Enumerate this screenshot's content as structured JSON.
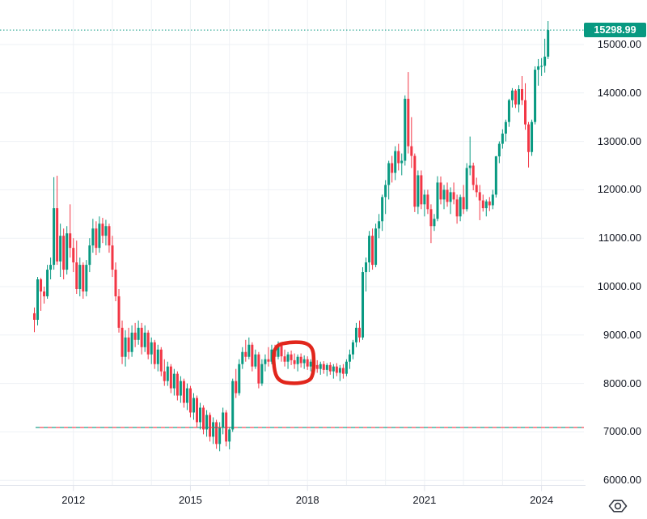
{
  "price_scale": {
    "current_price_label": "15298.99",
    "labels": [
      "15000.00",
      "14000.00",
      "13000.00",
      "12000.00",
      "11000.00",
      "10000.00",
      "9000.00",
      "8000.00",
      "7000.00",
      "6000.00"
    ],
    "levels": [
      15000,
      14000,
      13000,
      12000,
      11000,
      10000,
      9000,
      8000,
      7000,
      6000
    ],
    "label_bg_color": "#089981",
    "text_color": "#131722"
  },
  "time_scale": {
    "labeled_years": [
      2012,
      2015,
      2018,
      2021,
      2024
    ],
    "gridline_years": [
      2012,
      2013,
      2014,
      2015,
      2016,
      2017,
      2018,
      2019,
      2020,
      2021,
      2022,
      2023,
      2024
    ],
    "text_color": "#131722"
  },
  "colors": {
    "background": "#ffffff",
    "grid": "#eef1f5",
    "separator": "#e0e3eb",
    "up": "#089981",
    "down": "#f23645",
    "current_price_line": "#089981",
    "annotation_red": "#e1261c",
    "icon_stroke": "#363a45"
  },
  "chart_data": {
    "type": "candlestick",
    "interval": "1M",
    "start": "2011-01",
    "end": "2024-03",
    "ylim": [
      5950,
      15600
    ],
    "grid": true,
    "current_price": 15298.99,
    "dashed_levels": [
      {
        "price": 7100,
        "color": "#089981",
        "style": "dashed",
        "note": "teal dashed horizontal line"
      },
      {
        "price": 7100,
        "color": "#f23645",
        "style": "dashed",
        "note": "red dashed horizontal line overlapping teal"
      }
    ],
    "annotations": [
      {
        "type": "hand-drawn-circle",
        "color": "#e1261c",
        "x_range": [
          "2017-04",
          "2018-02"
        ],
        "price_range": [
          8010,
          8850
        ]
      }
    ],
    "candles": [
      [
        9450,
        9570,
        9060,
        9315
      ],
      [
        9315,
        10200,
        9200,
        10150
      ],
      [
        10150,
        10180,
        9500,
        9900
      ],
      [
        9900,
        10000,
        9650,
        9800
      ],
      [
        9800,
        10450,
        9750,
        10350
      ],
      [
        10350,
        10600,
        10150,
        10450
      ],
      [
        10450,
        12260,
        10350,
        11620
      ],
      [
        11620,
        12290,
        10450,
        10520
      ],
      [
        10520,
        11300,
        10200,
        11050
      ],
      [
        11050,
        11200,
        10150,
        10350
      ],
      [
        10350,
        11250,
        10250,
        11100
      ],
      [
        11100,
        11700,
        10600,
        10800
      ],
      [
        10800,
        11000,
        10300,
        10500
      ],
      [
        10500,
        10950,
        9850,
        9950
      ],
      [
        9950,
        10600,
        9800,
        10450
      ],
      [
        10450,
        10500,
        9750,
        9900
      ],
      [
        9900,
        10550,
        9800,
        10450
      ],
      [
        10450,
        11000,
        10300,
        10850
      ],
      [
        10850,
        11400,
        10700,
        11200
      ],
      [
        11200,
        11350,
        10650,
        10800
      ],
      [
        10800,
        11450,
        10700,
        11300
      ],
      [
        11300,
        11420,
        10900,
        11050
      ],
      [
        11050,
        11380,
        10850,
        11250
      ],
      [
        11250,
        11300,
        10700,
        10850
      ],
      [
        10850,
        11050,
        10200,
        10350
      ],
      [
        10350,
        10500,
        9700,
        9800
      ],
      [
        9800,
        9950,
        9050,
        9150
      ],
      [
        9150,
        9300,
        8400,
        8550
      ],
      [
        8550,
        9100,
        8350,
        8950
      ],
      [
        8950,
        9150,
        8500,
        8650
      ],
      [
        8650,
        9200,
        8550,
        9050
      ],
      [
        9050,
        9250,
        8750,
        8900
      ],
      [
        8900,
        9300,
        8800,
        9150
      ],
      [
        9150,
        9250,
        8600,
        8750
      ],
      [
        8750,
        9200,
        8650,
        9050
      ],
      [
        9050,
        9100,
        8500,
        8600
      ],
      [
        8600,
        8950,
        8400,
        8850
      ],
      [
        8850,
        8900,
        8300,
        8400
      ],
      [
        8400,
        8800,
        8250,
        8700
      ],
      [
        8700,
        8750,
        8150,
        8250
      ],
      [
        8250,
        8500,
        7950,
        8050
      ],
      [
        8050,
        8450,
        7950,
        8350
      ],
      [
        8350,
        8400,
        7800,
        7900
      ],
      [
        7900,
        8300,
        7750,
        8200
      ],
      [
        8200,
        8250,
        7650,
        7750
      ],
      [
        7750,
        8150,
        7600,
        8050
      ],
      [
        8050,
        8100,
        7500,
        7600
      ],
      [
        7600,
        8000,
        7450,
        7900
      ],
      [
        7900,
        7950,
        7300,
        7400
      ],
      [
        7400,
        7800,
        7250,
        7700
      ],
      [
        7700,
        7750,
        7100,
        7200
      ],
      [
        7200,
        7600,
        7050,
        7500
      ],
      [
        7500,
        7550,
        6950,
        7050
      ],
      [
        7050,
        7450,
        6900,
        7350
      ],
      [
        7350,
        7400,
        6800,
        6900
      ],
      [
        6900,
        7300,
        6750,
        7200
      ],
      [
        7200,
        7250,
        6650,
        6750
      ],
      [
        6750,
        7200,
        6600,
        7100
      ],
      [
        7100,
        7500,
        6950,
        7400
      ],
      [
        7400,
        7450,
        6700,
        6800
      ],
      [
        6800,
        7100,
        6640,
        7050
      ],
      [
        7050,
        8100,
        7000,
        8050
      ],
      [
        8050,
        8300,
        7700,
        7800
      ],
      [
        7800,
        8500,
        7750,
        8400
      ],
      [
        8400,
        8750,
        8300,
        8650
      ],
      [
        8650,
        8900,
        8450,
        8550
      ],
      [
        8550,
        8950,
        8500,
        8800
      ],
      [
        8800,
        8850,
        8250,
        8350
      ],
      [
        8350,
        8700,
        8300,
        8600
      ],
      [
        8600,
        8650,
        7900,
        8000
      ],
      [
        8000,
        8500,
        7950,
        8400
      ],
      [
        8400,
        8600,
        8250,
        8500
      ],
      [
        8500,
        8750,
        8350,
        8450
      ],
      [
        8450,
        8800,
        8400,
        8700
      ],
      [
        8700,
        8800,
        8450,
        8550
      ],
      [
        8550,
        8870,
        8500,
        8780
      ],
      [
        8780,
        8820,
        8450,
        8560
      ],
      [
        8560,
        8700,
        8350,
        8450
      ],
      [
        8450,
        8650,
        8300,
        8600
      ],
      [
        8600,
        8680,
        8380,
        8480
      ],
      [
        8480,
        8620,
        8300,
        8400
      ],
      [
        8400,
        8600,
        8250,
        8550
      ],
      [
        8550,
        8620,
        8330,
        8420
      ],
      [
        8420,
        8580,
        8300,
        8500
      ],
      [
        8500,
        8560,
        8280,
        8350
      ],
      [
        8350,
        8500,
        8250,
        8450
      ],
      [
        8450,
        8520,
        8300,
        8380
      ],
      [
        8380,
        8480,
        8220,
        8300
      ],
      [
        8300,
        8450,
        8180,
        8400
      ],
      [
        8400,
        8460,
        8200,
        8280
      ],
      [
        8280,
        8420,
        8150,
        8380
      ],
      [
        8380,
        8440,
        8180,
        8250
      ],
      [
        8250,
        8400,
        8100,
        8350
      ],
      [
        8350,
        8420,
        8150,
        8220
      ],
      [
        8220,
        8380,
        8050,
        8320
      ],
      [
        8320,
        8400,
        8100,
        8200
      ],
      [
        8200,
        8500,
        8150,
        8450
      ],
      [
        8450,
        8700,
        8300,
        8600
      ],
      [
        8600,
        8900,
        8500,
        8850
      ],
      [
        8850,
        9250,
        8750,
        9150
      ],
      [
        9150,
        9300,
        8850,
        8950
      ],
      [
        8950,
        10400,
        8900,
        10300
      ],
      [
        10300,
        10600,
        9900,
        10500
      ],
      [
        10500,
        11150,
        10300,
        11050
      ],
      [
        11050,
        11200,
        10350,
        10450
      ],
      [
        10450,
        11300,
        10400,
        11200
      ],
      [
        11200,
        11500,
        11000,
        11350
      ],
      [
        11350,
        11900,
        11150,
        11850
      ],
      [
        11850,
        12200,
        11500,
        12100
      ],
      [
        12100,
        12600,
        11800,
        12550
      ],
      [
        12550,
        12700,
        12150,
        12350
      ],
      [
        12350,
        12900,
        12200,
        12800
      ],
      [
        12800,
        12950,
        12400,
        12550
      ],
      [
        12550,
        12750,
        12300,
        12600
      ],
      [
        12600,
        13950,
        12500,
        13880
      ],
      [
        13880,
        14430,
        12750,
        12900
      ],
      [
        12900,
        13500,
        12450,
        12700
      ],
      [
        12700,
        12750,
        11540,
        11650
      ],
      [
        11650,
        12400,
        11500,
        12300
      ],
      [
        12300,
        12400,
        11600,
        11700
      ],
      [
        11700,
        12000,
        11450,
        11900
      ],
      [
        11900,
        12000,
        11500,
        11600
      ],
      [
        11600,
        11700,
        10900,
        11250
      ],
      [
        11250,
        11500,
        11150,
        11400
      ],
      [
        11400,
        12280,
        11350,
        12150
      ],
      [
        12150,
        12274,
        11700,
        11800
      ],
      [
        11800,
        12100,
        11600,
        12000
      ],
      [
        12000,
        12150,
        11650,
        11750
      ],
      [
        11750,
        12050,
        11500,
        11950
      ],
      [
        11950,
        12150,
        11700,
        11800
      ],
      [
        11800,
        11900,
        11300,
        11450
      ],
      [
        11450,
        11900,
        11350,
        11850
      ],
      [
        11850,
        12100,
        11500,
        11600
      ],
      [
        11600,
        12550,
        11550,
        12450
      ],
      [
        12450,
        13100,
        12300,
        12500
      ],
      [
        12500,
        12560,
        11990,
        12100
      ],
      [
        12100,
        12250,
        11850,
        11950
      ],
      [
        11950,
        12100,
        11372,
        11780
      ],
      [
        11780,
        11900,
        11550,
        11620
      ],
      [
        11620,
        11800,
        11450,
        11760
      ],
      [
        11760,
        11850,
        11560,
        11680
      ],
      [
        11680,
        12000,
        11600,
        11900
      ],
      [
        11900,
        12700,
        11840,
        12690
      ],
      [
        12690,
        13000,
        12550,
        12950
      ],
      [
        12950,
        13250,
        12850,
        13160
      ],
      [
        13160,
        13450,
        13000,
        13400
      ],
      [
        13400,
        13880,
        13300,
        13850
      ],
      [
        13850,
        14100,
        13700,
        14050
      ],
      [
        14050,
        14080,
        13690,
        13760
      ],
      [
        13760,
        14160,
        13600,
        14080
      ],
      [
        14080,
        14348,
        13750,
        13850
      ],
      [
        13850,
        14200,
        13240,
        13350
      ],
      [
        13350,
        13400,
        12460,
        12780
      ],
      [
        12780,
        13450,
        12700,
        13400
      ],
      [
        13400,
        14550,
        13350,
        14480
      ],
      [
        14480,
        14700,
        14150,
        14550
      ],
      [
        14550,
        14720,
        14350,
        14560
      ],
      [
        14560,
        15120,
        14420,
        14750
      ],
      [
        14750,
        15485,
        14700,
        15298.99
      ]
    ]
  }
}
